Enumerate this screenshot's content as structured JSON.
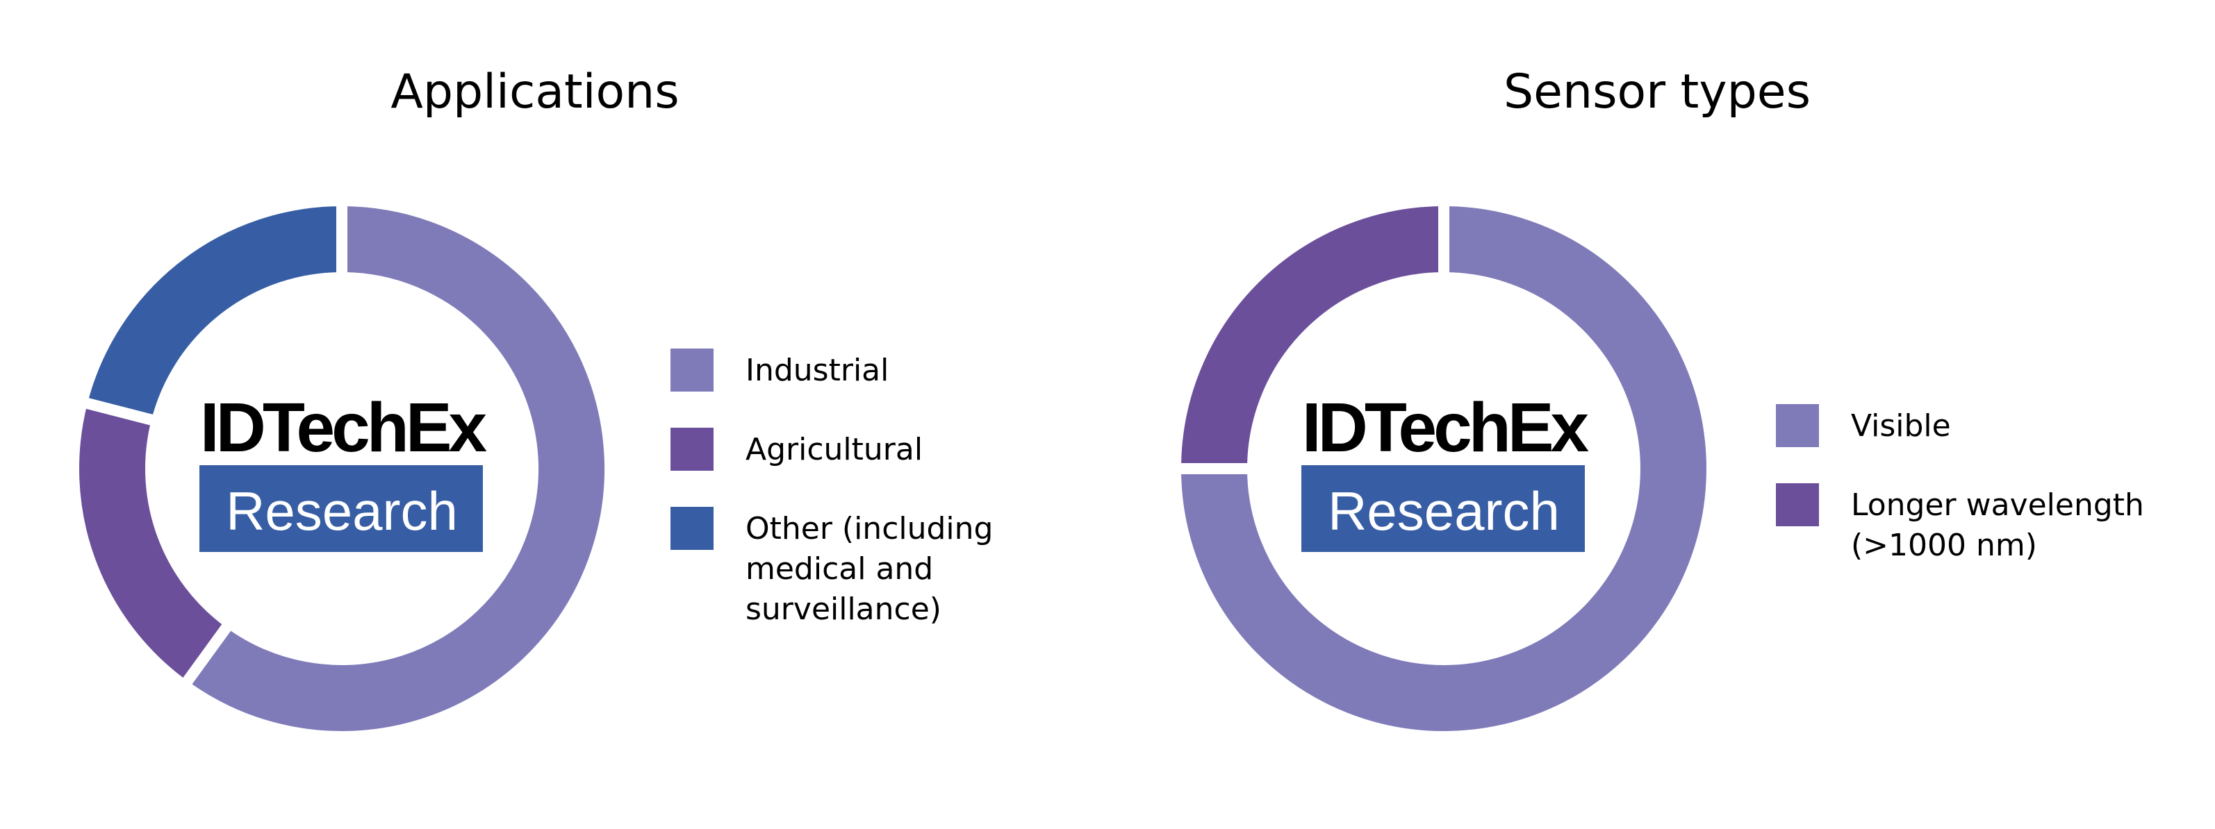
{
  "chart_data": [
    {
      "type": "pie",
      "donut": true,
      "title": "Applications",
      "categories": [
        "Industrial",
        "Agricultural",
        "Other (including medical and surveillance)"
      ],
      "legend_lines": [
        [
          "Industrial"
        ],
        [
          "Agricultural"
        ],
        [
          "Other (including",
          "medical and",
          "surveillance)"
        ]
      ],
      "values": [
        60,
        19,
        21
      ],
      "unit": "percent",
      "colors": [
        "#7f7bb9",
        "#6b4f9b",
        "#375ea4"
      ],
      "legend_placement": "right"
    },
    {
      "type": "pie",
      "donut": true,
      "title": "Sensor types",
      "categories": [
        "Visible",
        "Longer wavelength (>1000 nm)"
      ],
      "legend_lines": [
        [
          "Visible"
        ],
        [
          "Longer wavelength",
          "(>1000 nm)"
        ]
      ],
      "values": [
        75,
        25
      ],
      "unit": "percent",
      "colors": [
        "#7f7bb9",
        "#6b4f9b"
      ],
      "legend_placement": "right"
    }
  ],
  "watermark": {
    "line1": "IDTechEx",
    "line2": "Research",
    "color": "#375ea4"
  }
}
